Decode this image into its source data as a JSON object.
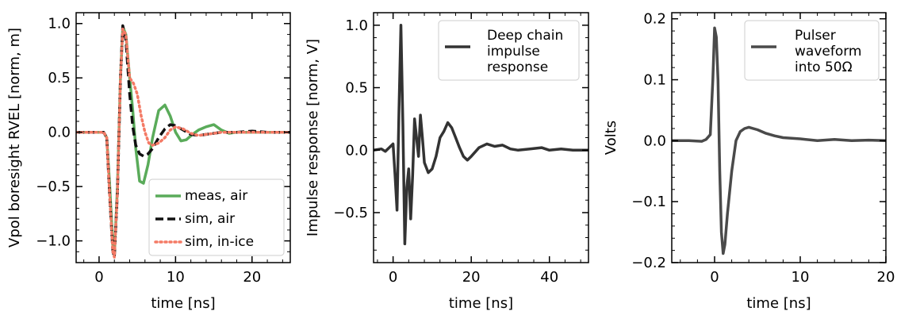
{
  "chart_data": [
    {
      "type": "line",
      "xlabel": "time [ns]",
      "ylabel": "Vpol boresight RVEL [norm, m]",
      "xlim": [
        -3,
        25
      ],
      "ylim": [
        -1.2,
        1.1
      ],
      "xticks": [
        0,
        10,
        20
      ],
      "yticks": [
        -1.0,
        -0.5,
        0.0,
        0.5,
        1.0
      ],
      "xtick_labels": [
        "0",
        "10",
        "20"
      ],
      "ytick_labels": [
        "−1.0",
        "−0.5",
        "0.0",
        "0.5",
        "1.0"
      ],
      "legend_position": "lower-right",
      "series": [
        {
          "name": "meas, air",
          "color": "#5aab5a",
          "style": "solid",
          "x": [
            -3,
            0,
            0.6,
            1.0,
            1.4,
            1.8,
            2.0,
            2.4,
            2.8,
            3.1,
            3.5,
            4.0,
            4.4,
            4.8,
            5.3,
            5.8,
            6.4,
            7.0,
            7.8,
            8.6,
            9.3,
            10.0,
            10.7,
            11.4,
            12.2,
            13.0,
            14.0,
            15.0,
            16.0,
            17.0,
            18.0,
            20.0,
            22.0,
            25.0
          ],
          "y": [
            0.0,
            0.0,
            0.0,
            -0.05,
            -0.5,
            -1.05,
            -1.13,
            -0.5,
            0.5,
            0.97,
            0.9,
            0.5,
            0.2,
            -0.15,
            -0.45,
            -0.47,
            -0.3,
            -0.05,
            0.2,
            0.25,
            0.15,
            0.0,
            -0.08,
            -0.07,
            -0.02,
            0.02,
            0.05,
            0.07,
            0.02,
            -0.01,
            0.0,
            0.0,
            0.0,
            0.0
          ]
        },
        {
          "name": "sim, air",
          "color": "#111111",
          "style": "dashed",
          "x": [
            -3,
            0,
            0.6,
            1.0,
            1.4,
            1.8,
            2.0,
            2.4,
            2.8,
            3.1,
            3.5,
            4.0,
            4.4,
            4.8,
            5.3,
            5.8,
            6.4,
            7.0,
            7.8,
            8.6,
            9.3,
            10.0,
            11.0,
            12.0,
            13.0,
            14.0,
            16.0,
            18.0,
            20.0,
            22.0,
            25.0
          ],
          "y": [
            0.0,
            0.0,
            0.0,
            -0.05,
            -0.6,
            -1.1,
            -1.15,
            -0.55,
            0.5,
            0.98,
            0.85,
            0.35,
            0.05,
            -0.12,
            -0.2,
            -0.22,
            -0.2,
            -0.15,
            -0.05,
            0.03,
            0.07,
            0.06,
            0.02,
            -0.02,
            -0.03,
            -0.02,
            0.0,
            0.0,
            0.01,
            0.0,
            0.0
          ]
        },
        {
          "name": "sim, in-ice",
          "color": "#f47a65",
          "style": "dotted",
          "x": [
            -3,
            0,
            0.6,
            1.0,
            1.4,
            1.8,
            2.0,
            2.4,
            2.8,
            3.1,
            3.5,
            4.0,
            4.5,
            5.0,
            5.5,
            6.0,
            6.5,
            7.0,
            7.8,
            8.6,
            9.3,
            10.0,
            11.0,
            12.0,
            13.0,
            14.0,
            16.0,
            18.0,
            20.0,
            22.0,
            25.0
          ],
          "y": [
            0.0,
            0.0,
            0.0,
            -0.05,
            -0.6,
            -1.1,
            -1.15,
            -0.55,
            0.5,
            0.95,
            0.9,
            0.5,
            0.45,
            0.35,
            0.15,
            0.0,
            -0.1,
            -0.12,
            -0.1,
            -0.05,
            0.02,
            0.05,
            0.03,
            -0.01,
            -0.03,
            -0.02,
            0.0,
            0.0,
            0.0,
            0.0,
            0.0
          ]
        }
      ]
    },
    {
      "type": "line",
      "xlabel": "time [ns]",
      "ylabel": "Impulse response [norm, V]",
      "xlim": [
        -5,
        50
      ],
      "ylim": [
        -0.9,
        1.1
      ],
      "xticks": [
        0,
        20,
        40
      ],
      "yticks": [
        -0.5,
        0.0,
        0.5,
        1.0
      ],
      "xtick_labels": [
        "0",
        "20",
        "40"
      ],
      "ytick_labels": [
        "−0.5",
        "0.0",
        "0.5",
        "1.0"
      ],
      "legend_position": "top-right",
      "series": [
        {
          "name": "Deep chain impulse response",
          "color": "#333333",
          "style": "solid",
          "x": [
            -5,
            -3,
            -2,
            -1,
            0,
            0.5,
            1.0,
            1.5,
            2.0,
            2.5,
            3.0,
            3.5,
            4.0,
            4.5,
            5.0,
            5.5,
            6.0,
            6.5,
            7.0,
            7.5,
            8.0,
            9.0,
            10.0,
            11.0,
            12.0,
            13.0,
            14.0,
            15.0,
            16.0,
            17.0,
            18.0,
            19.0,
            20.0,
            22.0,
            24.0,
            26.0,
            28.0,
            30.0,
            32.0,
            35.0,
            38.0,
            40.0,
            43.0,
            46.0,
            50.0
          ],
          "y": [
            0.0,
            0.01,
            -0.01,
            0.02,
            0.05,
            -0.2,
            -0.48,
            0.3,
            1.0,
            0.2,
            -0.75,
            -0.3,
            -0.15,
            -0.55,
            -0.2,
            0.25,
            0.1,
            -0.05,
            0.28,
            0.1,
            -0.1,
            -0.18,
            -0.15,
            -0.05,
            0.1,
            0.15,
            0.22,
            0.18,
            0.1,
            0.02,
            -0.05,
            -0.08,
            -0.05,
            0.02,
            0.05,
            0.03,
            0.04,
            0.01,
            0.0,
            0.01,
            0.02,
            0.0,
            0.01,
            0.0,
            0.0
          ]
        }
      ]
    },
    {
      "type": "line",
      "xlabel": "time [ns]",
      "ylabel": "Volts",
      "xlim": [
        -5,
        20
      ],
      "ylim": [
        -0.2,
        0.21
      ],
      "xticks": [
        0,
        10,
        20
      ],
      "yticks": [
        -0.2,
        -0.1,
        0.0,
        0.1,
        0.2
      ],
      "xtick_labels": [
        "0",
        "10",
        "20"
      ],
      "ytick_labels": [
        "−0.2",
        "−0.1",
        "0.0",
        "0.1",
        "0.2"
      ],
      "legend_position": "top-right",
      "series": [
        {
          "name": "Pulser waveform into 50Ω",
          "color": "#4a4a4a",
          "style": "solid",
          "x": [
            -5,
            -3,
            -1.5,
            -1,
            -0.5,
            -0.2,
            0.0,
            0.2,
            0.4,
            0.6,
            0.8,
            1.0,
            1.2,
            1.5,
            2.0,
            2.5,
            3.0,
            3.5,
            4.0,
            5.0,
            6.0,
            7.0,
            8.0,
            9.0,
            10.0,
            12.0,
            14.0,
            16.0,
            18.0,
            20.0
          ],
          "y": [
            0.0,
            0.0,
            -0.001,
            0.002,
            0.01,
            0.1,
            0.185,
            0.17,
            0.1,
            -0.05,
            -0.15,
            -0.185,
            -0.17,
            -0.12,
            -0.05,
            0.0,
            0.015,
            0.02,
            0.022,
            0.018,
            0.012,
            0.008,
            0.005,
            0.004,
            0.003,
            0.0,
            0.002,
            0.0,
            0.001,
            0.0
          ]
        }
      ]
    }
  ]
}
